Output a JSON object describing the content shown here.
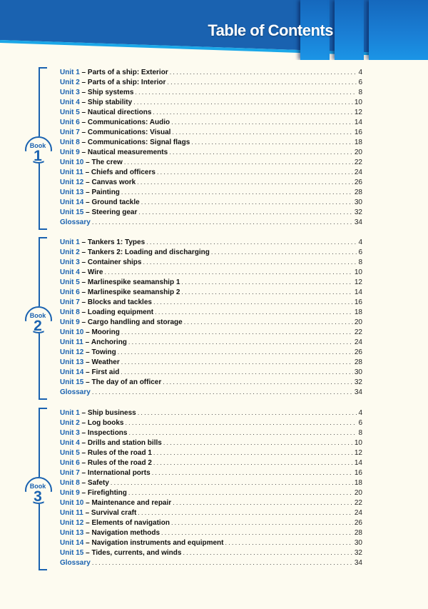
{
  "header": {
    "title": "Table of Contents",
    "colors": {
      "band": "#1a62b0",
      "stripe": "#1aa7e8",
      "text": "#ffffff"
    }
  },
  "colors": {
    "accent": "#1a62b0",
    "text": "#111111",
    "background": "#fdfbf0"
  },
  "books": [
    {
      "label": "Book",
      "number": "1",
      "entries": [
        {
          "unit": "Unit 1",
          "sep": " – ",
          "topic": "Parts of a ship: Exterior",
          "page": "4"
        },
        {
          "unit": "Unit 2",
          "sep": " – ",
          "topic": "Parts of a ship: Interior",
          "page": "6"
        },
        {
          "unit": "Unit 3",
          "sep": " – ",
          "topic": "Ship systems",
          "page": "8"
        },
        {
          "unit": "Unit 4",
          "sep": " – ",
          "topic": "Ship stability",
          "page": "10"
        },
        {
          "unit": "Unit 5",
          "sep": " – ",
          "topic": "Nautical directions",
          "page": "12"
        },
        {
          "unit": "Unit 6",
          "sep": " – ",
          "topic": "Communications: Audio",
          "page": "14"
        },
        {
          "unit": "Unit 7",
          "sep": " – ",
          "topic": "Communications: Visual",
          "page": "16"
        },
        {
          "unit": "Unit 8",
          "sep": " – ",
          "topic": "Communications: Signal flags",
          "page": "18"
        },
        {
          "unit": "Unit 9",
          "sep": " – ",
          "topic": "Nautical measurements",
          "page": "20"
        },
        {
          "unit": "Unit 10",
          "sep": " – ",
          "topic": "The crew",
          "page": "22"
        },
        {
          "unit": "Unit 11",
          "sep": " – ",
          "topic": "Chiefs and officers",
          "page": "24"
        },
        {
          "unit": "Unit 12",
          "sep": " – ",
          "topic": "Canvas work",
          "page": "26"
        },
        {
          "unit": "Unit 13",
          "sep": " – ",
          "topic": "Painting",
          "page": "28"
        },
        {
          "unit": "Unit 14",
          "sep": " – ",
          "topic": "Ground tackle",
          "page": "30"
        },
        {
          "unit": "Unit 15",
          "sep": " – ",
          "topic": "Steering gear",
          "page": "32"
        },
        {
          "unit": "Glossary",
          "sep": "",
          "topic": "",
          "page": "34"
        }
      ]
    },
    {
      "label": "Book",
      "number": "2",
      "entries": [
        {
          "unit": "Unit 1",
          "sep": " – ",
          "topic": "Tankers 1: Types",
          "page": "4"
        },
        {
          "unit": "Unit 2",
          "sep": " – ",
          "topic": "Tankers 2: Loading and discharging",
          "page": "6"
        },
        {
          "unit": "Unit 3",
          "sep": " – ",
          "topic": "Container ships",
          "page": "8"
        },
        {
          "unit": "Unit 4",
          "sep": " – ",
          "topic": "Wire",
          "page": "10"
        },
        {
          "unit": "Unit 5",
          "sep": " – ",
          "topic": "Marlinespike seamanship 1",
          "page": "12"
        },
        {
          "unit": "Unit 6",
          "sep": " – ",
          "topic": "Marlinespike seamanship 2",
          "page": "14"
        },
        {
          "unit": "Unit 7",
          "sep": " – ",
          "topic": "Blocks and tackles",
          "page": "16"
        },
        {
          "unit": "Unit 8",
          "sep": " – ",
          "topic": "Loading equipment",
          "page": "18"
        },
        {
          "unit": "Unit 9",
          "sep": " – ",
          "topic": "Cargo handling and storage",
          "page": "20"
        },
        {
          "unit": "Unit 10",
          "sep": " – ",
          "topic": "Mooring",
          "page": "22"
        },
        {
          "unit": "Unit 11",
          "sep": " – ",
          "topic": "Anchoring",
          "page": "24"
        },
        {
          "unit": "Unit 12",
          "sep": " – ",
          "topic": "Towing",
          "page": "26"
        },
        {
          "unit": "Unit 13",
          "sep": " – ",
          "topic": "Weather",
          "page": "28"
        },
        {
          "unit": "Unit 14",
          "sep": " – ",
          "topic": "First aid",
          "page": "30"
        },
        {
          "unit": "Unit 15",
          "sep": " – ",
          "topic": "The day of an officer",
          "page": "32"
        },
        {
          "unit": "Glossary",
          "sep": "",
          "topic": "",
          "page": "34"
        }
      ]
    },
    {
      "label": "Book",
      "number": "3",
      "entries": [
        {
          "unit": "Unit 1",
          "sep": " – ",
          "topic": "Ship business",
          "page": "4"
        },
        {
          "unit": "Unit 2",
          "sep": " – ",
          "topic": "Log books",
          "page": "6"
        },
        {
          "unit": "Unit 3",
          "sep": " – ",
          "topic": "Inspections",
          "page": "8"
        },
        {
          "unit": "Unit 4",
          "sep": " – ",
          "topic": "Drills and station bills",
          "page": "10"
        },
        {
          "unit": "Unit 5",
          "sep": " – ",
          "topic": "Rules of the road 1",
          "page": "12"
        },
        {
          "unit": "Unit 6",
          "sep": " – ",
          "topic": "Rules of the road 2",
          "page": "14"
        },
        {
          "unit": "Unit 7",
          "sep": " – ",
          "topic": "International ports",
          "page": "16"
        },
        {
          "unit": "Unit 8",
          "sep": " – ",
          "topic": "Safety",
          "page": "18"
        },
        {
          "unit": "Unit 9",
          "sep": " – ",
          "topic": "Firefighting",
          "page": "20"
        },
        {
          "unit": "Unit 10",
          "sep": " – ",
          "topic": "Maintenance and repair",
          "page": "22"
        },
        {
          "unit": "Unit 11",
          "sep": " – ",
          "topic": "Survival craft",
          "page": "24"
        },
        {
          "unit": "Unit 12",
          "sep": " – ",
          "topic": "Elements of navigation",
          "page": "26"
        },
        {
          "unit": "Unit 13",
          "sep": " – ",
          "topic": "Navigation methods",
          "page": "28"
        },
        {
          "unit": "Unit 14",
          "sep": " – ",
          "topic": "Navigation instruments and equipment",
          "page": "30"
        },
        {
          "unit": "Unit 15",
          "sep": " – ",
          "topic": "Tides, currents, and winds",
          "page": "32"
        },
        {
          "unit": "Glossary",
          "sep": "",
          "topic": "",
          "page": "34"
        }
      ]
    }
  ]
}
